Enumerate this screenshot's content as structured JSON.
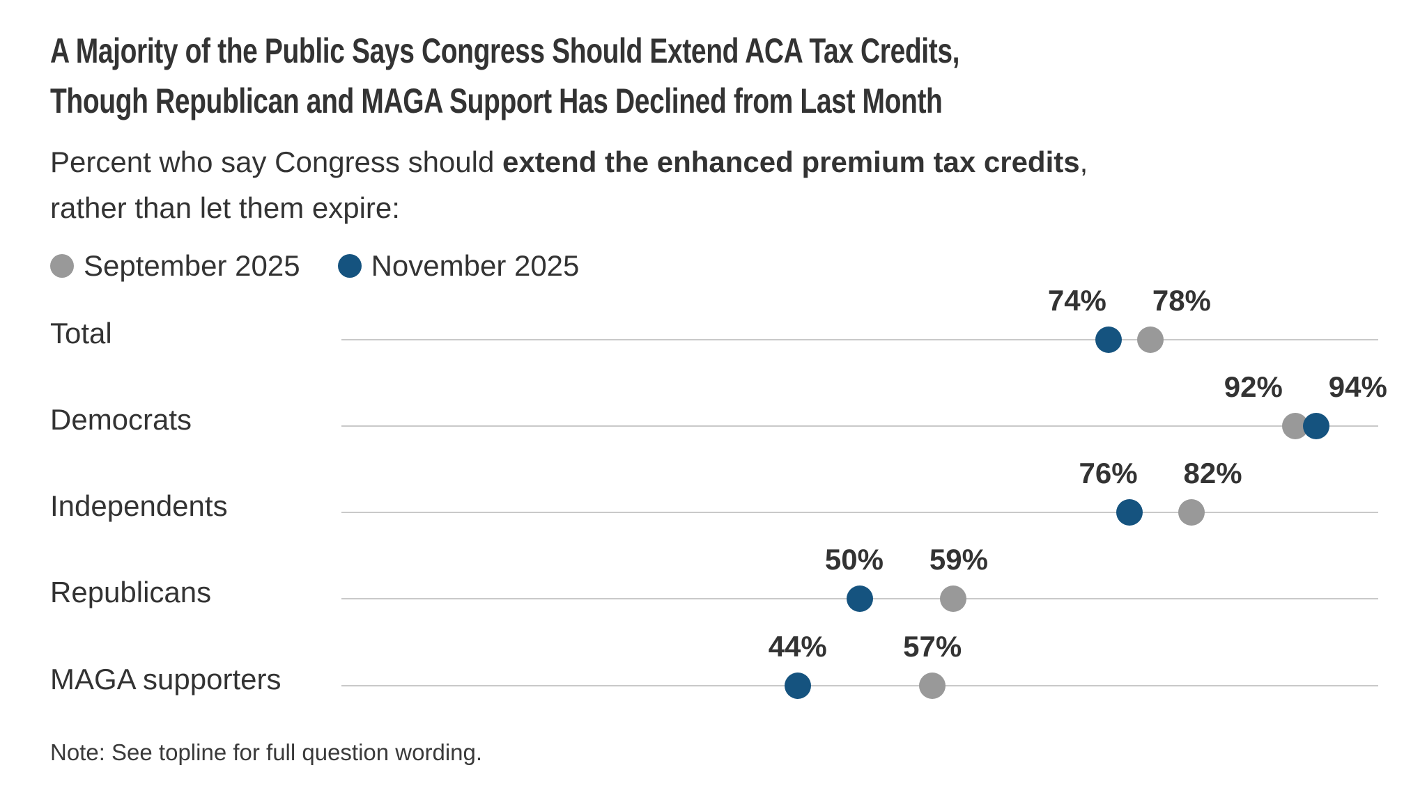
{
  "header": {
    "title_line1": "A Majority of the Public Says Congress Should Extend ACA Tax Credits,",
    "title_line2": "Though Republican and MAGA Support Has Declined from Last Month",
    "subtitle_prefix": "Percent who say Congress should ",
    "subtitle_bold": "extend the enhanced premium tax credits",
    "subtitle_suffix": ", rather than let them expire:"
  },
  "legend": [
    {
      "label": "September 2025",
      "color": "#999999"
    },
    {
      "label": "November 2025",
      "color": "#15537f"
    }
  ],
  "chart_data": {
    "type": "scatter",
    "subtype": "dumbbell-dot-plot",
    "categories": [
      "Total",
      "Democrats",
      "Independents",
      "Republicans",
      "MAGA supporters"
    ],
    "series": [
      {
        "name": "September 2025",
        "color": "#999999",
        "values": [
          78,
          92,
          82,
          59,
          57
        ]
      },
      {
        "name": "November 2025",
        "color": "#15537f",
        "values": [
          74,
          94,
          76,
          50,
          44
        ]
      }
    ],
    "value_suffix": "%",
    "xlim": [
      0,
      100
    ],
    "grid": "one horizontal track line per category, full axis width",
    "legend_position": "top-left",
    "track_color": "#c9c9c9",
    "label_color": "#333333"
  },
  "note": "Note: See topline for full question wording."
}
